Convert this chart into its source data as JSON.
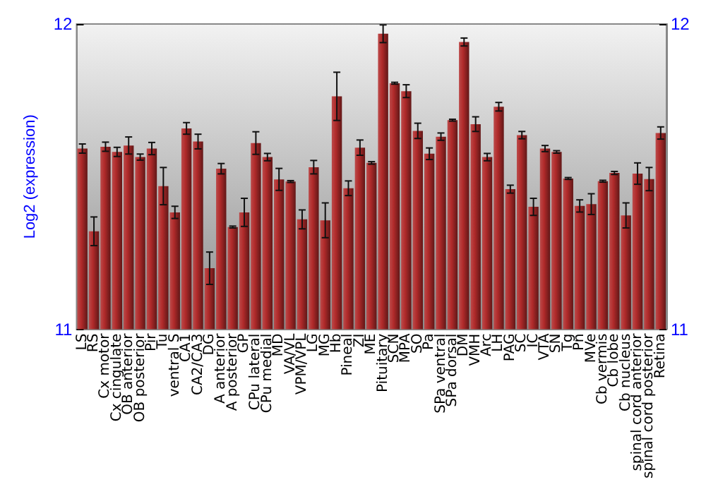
{
  "chart_data": {
    "type": "bar",
    "ylabel": "Log2 (expression)",
    "categories": [
      "LS",
      "RS",
      "Cx motor",
      "Cx cingulate",
      "OB anterior",
      "OB posterior",
      "Pir",
      "Tu",
      "ventral S",
      "CA1",
      "CA2/CA3",
      "DG",
      "A anterior",
      "A posterior",
      "GP",
      "CPu lateral",
      "CPu medial",
      "MD",
      "VA/VL",
      "VPM/VPL",
      "LG",
      "MG",
      "Hb",
      "Pineal",
      "ZI",
      "ME",
      "Pituitary",
      "SCN",
      "MPA",
      "SO",
      "Pa",
      "SPa ventral",
      "SPa dorsal",
      "DM",
      "VMH",
      "Arc",
      "LH",
      "PAG",
      "SC",
      "IC",
      "VTA",
      "SN",
      "Tg",
      "Pn",
      "MVe",
      "Cb vermis",
      "Cb lobe",
      "Cb nucleus",
      "spinal cord anterior",
      "spinal cord posterior",
      "Retina"
    ],
    "values": [
      11.592,
      11.321,
      11.598,
      11.581,
      11.602,
      11.564,
      11.592,
      11.469,
      11.383,
      11.658,
      11.615,
      11.2,
      11.526,
      11.335,
      11.383,
      11.61,
      11.564,
      11.491,
      11.484,
      11.36,
      11.531,
      11.357,
      11.763,
      11.462,
      11.595,
      11.545,
      11.968,
      11.806,
      11.78,
      11.65,
      11.575,
      11.631,
      11.685,
      11.941,
      11.672,
      11.564,
      11.729,
      11.459,
      11.636,
      11.401,
      11.592,
      11.581,
      11.494,
      11.404,
      11.41,
      11.485,
      11.512,
      11.373,
      11.51,
      11.492,
      11.643
    ],
    "errors": [
      0.015,
      0.047,
      0.015,
      0.015,
      0.028,
      0.01,
      0.02,
      0.061,
      0.02,
      0.019,
      0.024,
      0.053,
      0.017,
      0.003,
      0.046,
      0.037,
      0.012,
      0.036,
      0.003,
      0.031,
      0.022,
      0.057,
      0.079,
      0.024,
      0.025,
      0.004,
      0.029,
      0.003,
      0.021,
      0.025,
      0.019,
      0.012,
      0.003,
      0.013,
      0.024,
      0.012,
      0.014,
      0.013,
      0.012,
      0.028,
      0.01,
      0.004,
      0.003,
      0.02,
      0.034,
      0.003,
      0.005,
      0.041,
      0.035,
      0.038,
      0.02
    ],
    "color": "#b02a2a",
    "ylim": [
      11,
      12
    ],
    "yticks": [
      11,
      12
    ],
    "y2lim": [
      11,
      12
    ],
    "y2ticks": [
      11,
      12
    ],
    "grid": false
  }
}
